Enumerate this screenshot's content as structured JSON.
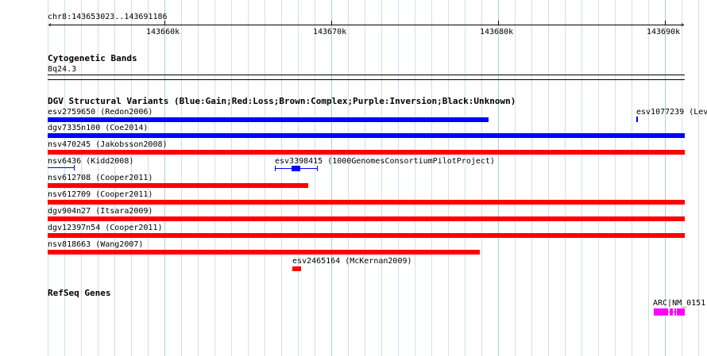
{
  "ruler": {
    "location": "chr8:143653023..143691186",
    "labels": [
      "143660k",
      "143670k",
      "143680k",
      "143690k"
    ]
  },
  "tracks": {
    "cytoband": {
      "title": "Cytogenetic Bands",
      "band": "8q24.3"
    },
    "dgv": {
      "title": "DGV Structural Variants (Blue:Gain;Red:Loss;Brown:Complex;Purple:Inversion;Black:Unknown)",
      "features": [
        {
          "label": "esv2759650 (Redon2006)",
          "type": "Gain"
        },
        {
          "label": "esv1077239 (Lev",
          "type": "Gain"
        },
        {
          "label": "dgv7335n100 (Coe2014)",
          "type": "Gain"
        },
        {
          "label": "nsv470245 (Jakobsson2008)",
          "type": "Loss"
        },
        {
          "label": "nsv6436 (Kidd2008)",
          "type": "Gain"
        },
        {
          "label": "esv3398415 (1000GenomesConsortiumPilotProject)",
          "type": "Gain"
        },
        {
          "label": "nsv612708 (Cooper2011)",
          "type": "Loss"
        },
        {
          "label": "nsv612709 (Cooper2011)",
          "type": "Loss"
        },
        {
          "label": "dgv904n27 (Itsara2009)",
          "type": "Loss"
        },
        {
          "label": "dgv12397n54 (Cooper2011)",
          "type": "Loss"
        },
        {
          "label": "nsv818663 (Wang2007)",
          "type": "Loss"
        },
        {
          "label": "esv2465164 (McKernan2009)",
          "type": "Loss"
        }
      ]
    },
    "refseq": {
      "title": "RefSeq Genes",
      "gene_label": "ARC|NM_0151"
    }
  },
  "colors": {
    "gain": "#0000ff",
    "loss": "#ff0000",
    "gene": "#ff00ff",
    "grid": "#c8e4ec"
  }
}
